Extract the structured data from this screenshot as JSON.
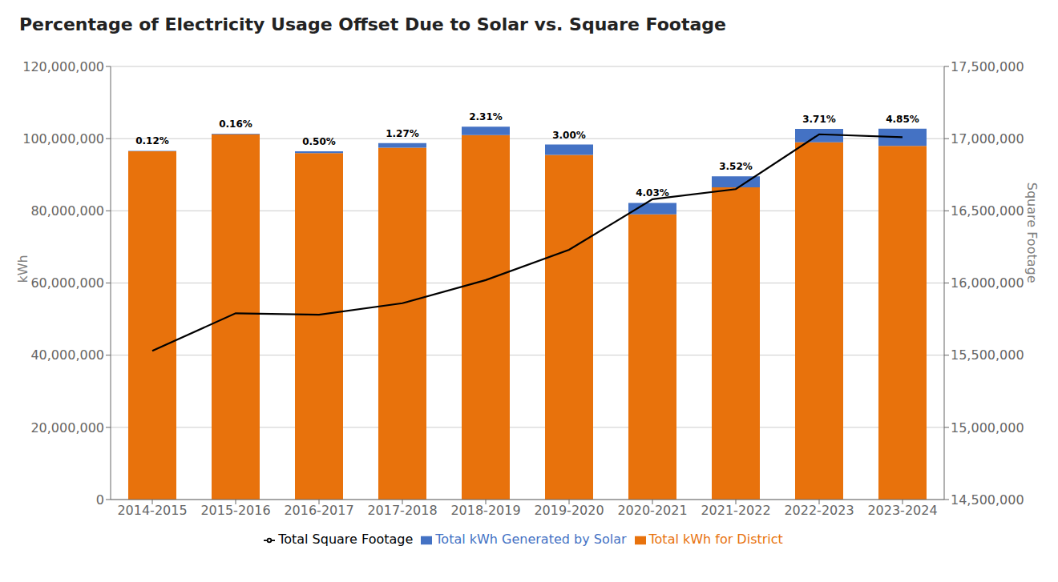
{
  "chart_data": {
    "type": "bar",
    "title": "Percentage of Electricity Usage Offset Due to Solar vs. Square Footage",
    "categories": [
      "2014-2015",
      "2015-2016",
      "2016-2017",
      "2017-2018",
      "2018-2019",
      "2019-2020",
      "2020-2021",
      "2021-2022",
      "2022-2023",
      "2023-2024"
    ],
    "series": [
      {
        "name": "Total kWh for District",
        "color": "#e8720c",
        "values": [
          96500000,
          101200000,
          96000000,
          97500000,
          101000000,
          95500000,
          79000000,
          86500000,
          99000000,
          98000000
        ]
      },
      {
        "name": "Total kWh Generated by Solar",
        "color": "#4472c4",
        "values": [
          115800,
          161920,
          480000,
          1238250,
          2333100,
          2865000,
          3186700,
          3044800,
          3672900,
          4753000
        ]
      },
      {
        "name": "Total Square Footage",
        "color": "#000000",
        "type": "line",
        "axis": "y2",
        "values": [
          15530000,
          15790000,
          15780000,
          15860000,
          16020000,
          16230000,
          16580000,
          16650000,
          17030000,
          17010000
        ]
      }
    ],
    "stacked": true,
    "annotations": [
      "0.12%",
      "0.16%",
      "0.50%",
      "1.27%",
      "2.31%",
      "3.00%",
      "4.03%",
      "3.52%",
      "3.71%",
      "4.85%"
    ],
    "ylabel": "kWh",
    "y2label": "Square Footage",
    "ylim": [
      0,
      120000000
    ],
    "yticks": [
      0,
      {
        "value": 20000000,
        "label": "20,000,000"
      },
      {
        "value": 40000000,
        "label": "40,000,000"
      },
      {
        "value": 60000000,
        "label": "60,000,000"
      },
      {
        "value": 80000000,
        "label": "80,000,000"
      },
      {
        "value": 100000000,
        "label": "100,000,000"
      },
      {
        "value": 120000000,
        "label": "120,000,000"
      }
    ],
    "y2lim": [
      14500000,
      17500000
    ],
    "y2ticks": [
      {
        "value": 14500000,
        "label": "14,500,000"
      },
      {
        "value": 15000000,
        "label": "15,000,000"
      },
      {
        "value": 15500000,
        "label": "15,500,000"
      },
      {
        "value": 16000000,
        "label": "16,000,000"
      },
      {
        "value": 16500000,
        "label": "16,500,000"
      },
      {
        "value": 17000000,
        "label": "17,000,000"
      },
      {
        "value": 17500000,
        "label": "17,500,000"
      }
    ],
    "grid": true,
    "legend": "bottom"
  }
}
